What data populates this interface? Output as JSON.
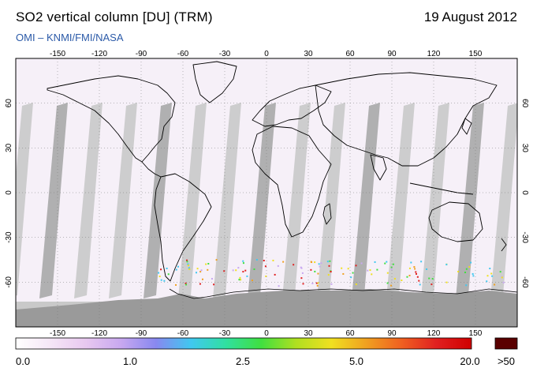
{
  "header": {
    "title": "SO2 vertical column [DU] (TRM)",
    "date": "19 August 2012",
    "credit": "OMI  –  KNMI/FMI/NASA"
  },
  "axes": {
    "lon_ticks": [
      "-150",
      "-120",
      "-90",
      "-60",
      "-30",
      "0",
      "30",
      "60",
      "90",
      "120",
      "150"
    ],
    "lat_ticks": [
      "60",
      "30",
      "0",
      "-30",
      "-60"
    ]
  },
  "colorbar": {
    "labels": [
      "0.0",
      "1.0",
      "2.5",
      "5.0",
      "20.0"
    ],
    "overflow_label": ">50",
    "colors": [
      "#ffffff",
      "#f5e6f6",
      "#e8c8f0",
      "#c8a8f0",
      "#8888f0",
      "#40c8f0",
      "#30e0a0",
      "#40e040",
      "#b0e020",
      "#f0e020",
      "#f0a020",
      "#f06020",
      "#e02020",
      "#d00000"
    ],
    "overflow_color": "#5a0000"
  },
  "colors": {
    "map_background": "#f6f0f8",
    "orbit_gap": "#c9c9c9",
    "orbit_dark": "#a8a8a8",
    "antarctica": "#9a9a9a",
    "coast": "#000000"
  }
}
